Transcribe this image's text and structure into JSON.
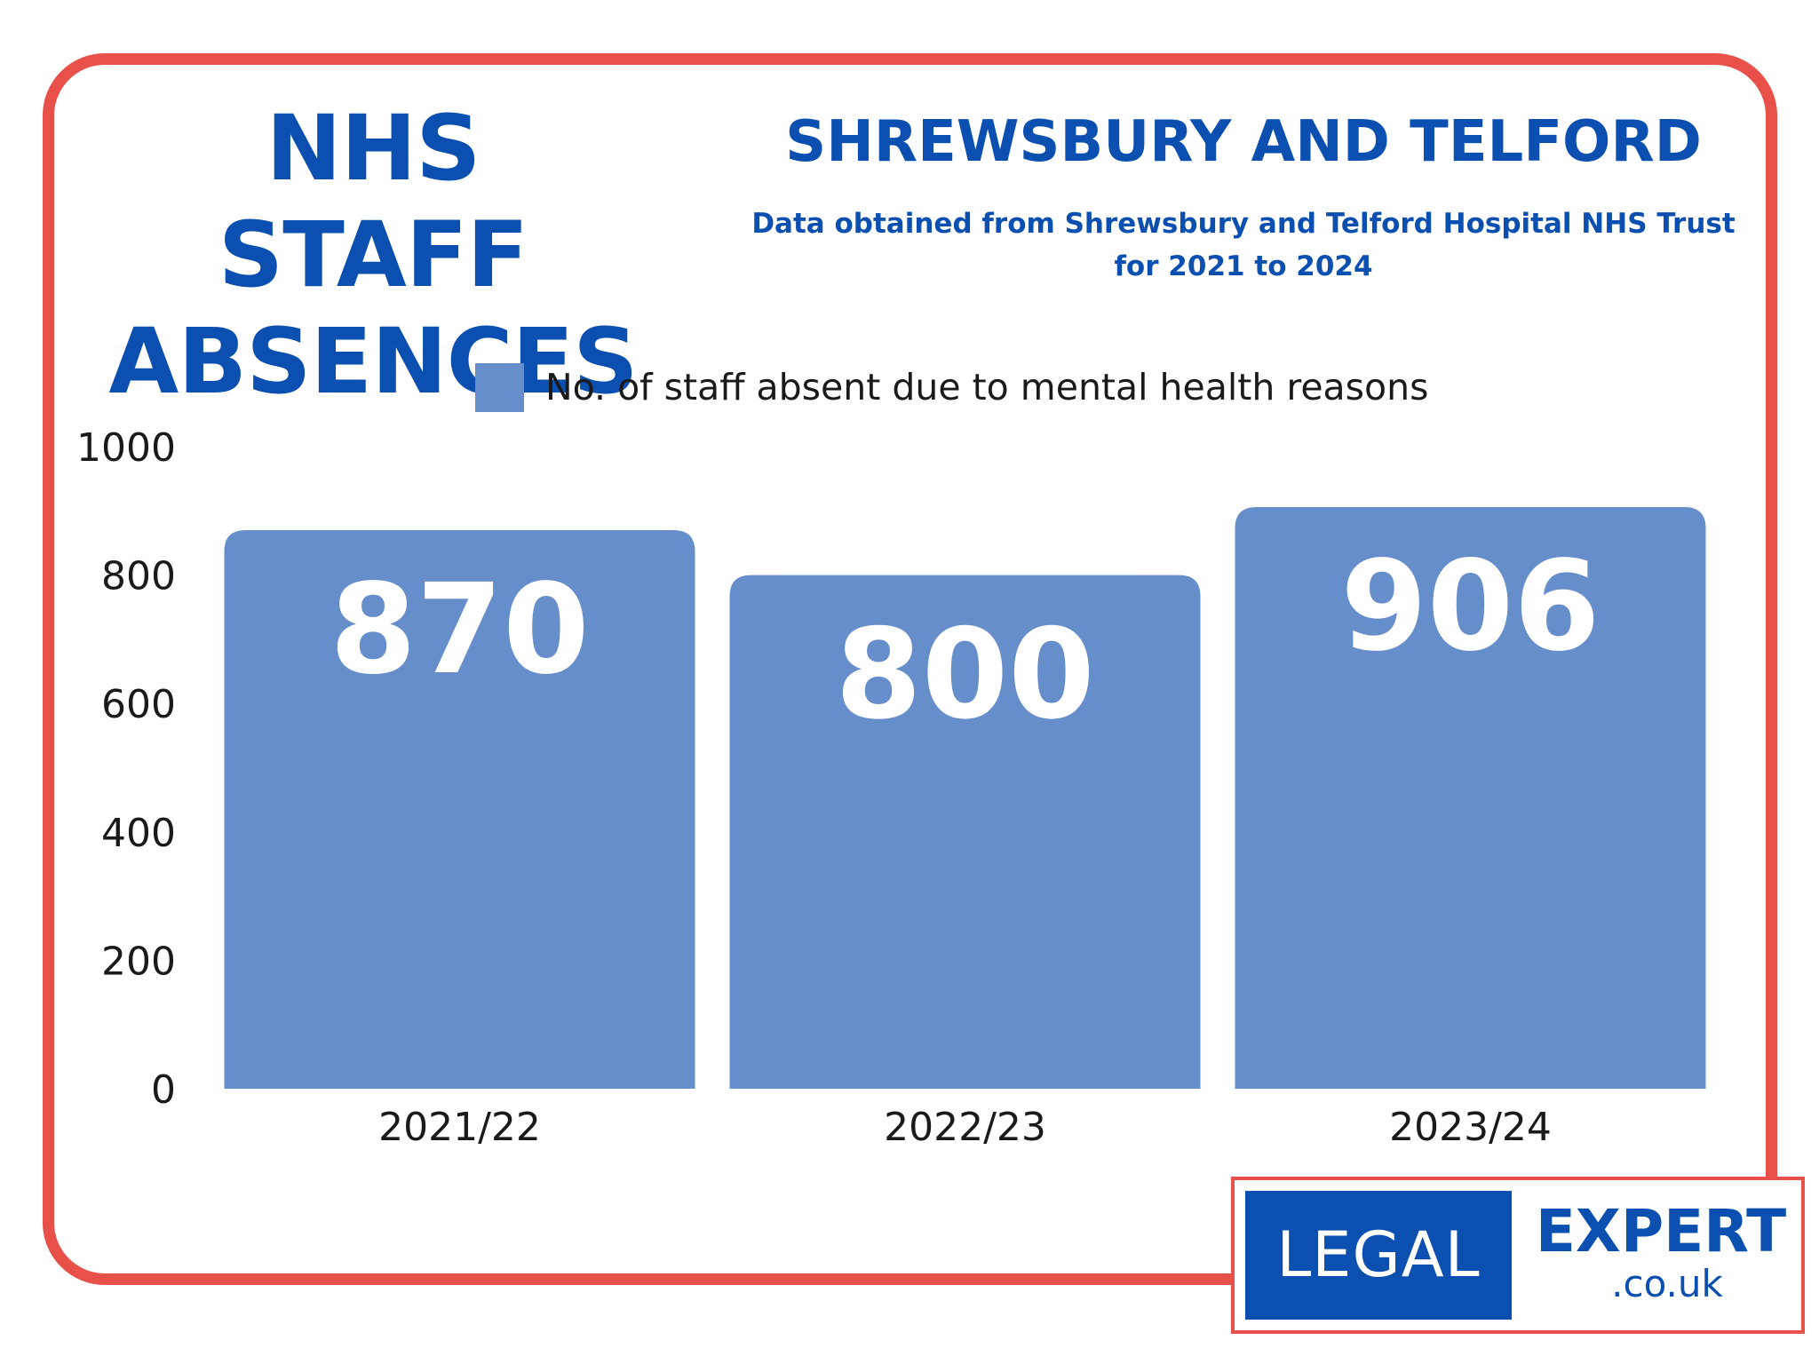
{
  "header": {
    "title_line1": "NHS STAFF",
    "title_line2": "ABSENCES",
    "region": "SHREWSBURY AND TELFORD",
    "source_line1": "Data obtained from Shrewsbury and Telford Hospital NHS Trust",
    "source_line2": "for 2021 to 2024"
  },
  "colors": {
    "accent": "#0b4fb0",
    "bar": "#668ecb",
    "frame": "#e8514a"
  },
  "chart_data": {
    "type": "bar",
    "categories": [
      "2021/22",
      "2022/23",
      "2023/24"
    ],
    "series": [
      {
        "name": "No. of staff absent due to mental health reasons",
        "values": [
          870,
          800,
          906
        ]
      }
    ],
    "ylim": [
      0,
      1000
    ],
    "yticks": [
      "0",
      "200",
      "400",
      "600",
      "800",
      "1000"
    ],
    "data_labels": [
      "870",
      "800",
      "906"
    ],
    "grid": false,
    "legend_position": "top-center",
    "xlabel": "",
    "ylabel": ""
  },
  "logo": {
    "left_text": "LEGAL",
    "right_text": "EXPERT",
    "domain_text": ".co.uk"
  }
}
